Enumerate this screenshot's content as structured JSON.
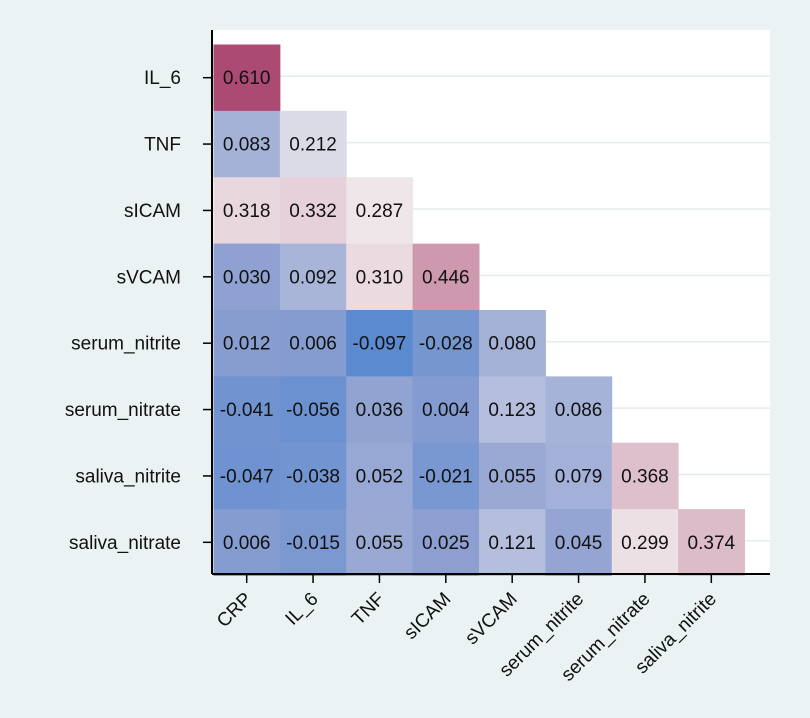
{
  "chart_data": {
    "type": "heatmap",
    "title": "",
    "xlabel": "",
    "ylabel": "",
    "grid": true,
    "legend": "none",
    "x_categories": [
      "CRP",
      "IL_6",
      "TNF",
      "sICAM",
      "sVCAM",
      "serum_nitrite",
      "serum_nitrate",
      "saliva_nitrite"
    ],
    "y_categories": [
      "IL_6",
      "TNF",
      "sICAM",
      "sVCAM",
      "serum_nitrite",
      "serum_nitrate",
      "saliva_nitrite",
      "saliva_nitrate"
    ],
    "values": [
      [
        0.61
      ],
      [
        0.083,
        0.212
      ],
      [
        0.318,
        0.332,
        0.287
      ],
      [
        0.03,
        0.092,
        0.31,
        0.446
      ],
      [
        0.012,
        0.006,
        -0.097,
        -0.028,
        0.08
      ],
      [
        -0.041,
        -0.056,
        0.036,
        0.004,
        0.123,
        0.086
      ],
      [
        -0.047,
        -0.038,
        0.052,
        -0.021,
        0.055,
        0.079,
        0.368
      ],
      [
        0.006,
        -0.015,
        0.055,
        0.025,
        0.121,
        0.045,
        0.299,
        0.374
      ]
    ],
    "labels": [
      [
        "0.610"
      ],
      [
        "0.083",
        "0.212"
      ],
      [
        "0.318",
        "0.332",
        "0.287"
      ],
      [
        "0.030",
        "0.092",
        "0.310",
        "0.446"
      ],
      [
        "0.012",
        "0.006",
        "-0.097",
        "-0.028",
        "0.080"
      ],
      [
        "-0.041",
        "-0.056",
        "0.036",
        "0.004",
        "0.123",
        "0.086"
      ],
      [
        "-0.047",
        "-0.038",
        "0.052",
        "-0.021",
        "0.055",
        "0.079",
        "0.368"
      ],
      [
        "0.006",
        "-0.015",
        "0.055",
        "0.025",
        "0.121",
        "0.045",
        "0.299",
        "0.374"
      ]
    ],
    "colors": {
      "negative": "#5b8ad0",
      "low": "#8c9fd0",
      "neutral": "#f3eef0",
      "high": "#ab4a72",
      "background": "#eaf2f3",
      "plot_background": "#ffffff",
      "gridline": "#e3ecee"
    }
  }
}
